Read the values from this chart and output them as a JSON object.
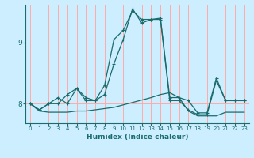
{
  "xlabel": "Humidex (Indice chaleur)",
  "background_color": "#cceeff",
  "grid_color": "#ffaaaa",
  "line_color": "#1a6b6b",
  "xlim": [
    -0.5,
    23.5
  ],
  "ylim_min": 7.68,
  "ylim_max": 9.62,
  "yticks": [
    8,
    9
  ],
  "xticks": [
    0,
    1,
    2,
    3,
    4,
    5,
    6,
    7,
    8,
    9,
    10,
    11,
    12,
    13,
    14,
    15,
    16,
    17,
    18,
    19,
    20,
    21,
    22,
    23
  ],
  "line1_x": [
    0,
    1,
    2,
    3,
    4,
    5,
    6,
    7,
    8,
    9,
    10,
    11,
    12,
    13,
    14,
    15,
    16,
    17,
    18,
    19,
    20,
    21,
    22,
    23
  ],
  "line1_y": [
    8.0,
    7.9,
    8.0,
    8.0,
    8.15,
    8.25,
    8.05,
    8.05,
    8.3,
    9.05,
    9.2,
    9.52,
    9.38,
    9.38,
    9.38,
    8.05,
    8.05,
    7.9,
    7.82,
    7.82,
    8.38,
    8.05,
    8.05,
    8.05
  ],
  "line2_x": [
    0,
    1,
    2,
    3,
    4,
    5,
    6,
    7,
    8,
    9,
    10,
    11,
    12,
    13,
    14,
    15,
    16,
    17,
    18,
    19,
    20,
    21,
    22,
    23
  ],
  "line2_y": [
    8.0,
    7.9,
    8.0,
    8.1,
    8.0,
    8.25,
    8.1,
    8.05,
    8.15,
    8.65,
    9.05,
    9.55,
    9.32,
    9.38,
    9.4,
    8.1,
    8.1,
    8.05,
    7.85,
    7.85,
    8.42,
    8.05,
    8.05,
    8.05
  ],
  "line3_x": [
    0,
    1,
    2,
    3,
    4,
    5,
    6,
    7,
    8,
    9,
    10,
    11,
    12,
    13,
    14,
    15,
    16,
    17,
    18,
    19,
    20,
    21,
    22,
    23
  ],
  "line3_y": [
    8.0,
    7.88,
    7.86,
    7.86,
    7.86,
    7.88,
    7.88,
    7.9,
    7.92,
    7.94,
    7.98,
    8.02,
    8.06,
    8.1,
    8.15,
    8.18,
    8.1,
    7.88,
    7.8,
    7.8,
    7.8,
    7.86,
    7.86,
    7.86
  ]
}
